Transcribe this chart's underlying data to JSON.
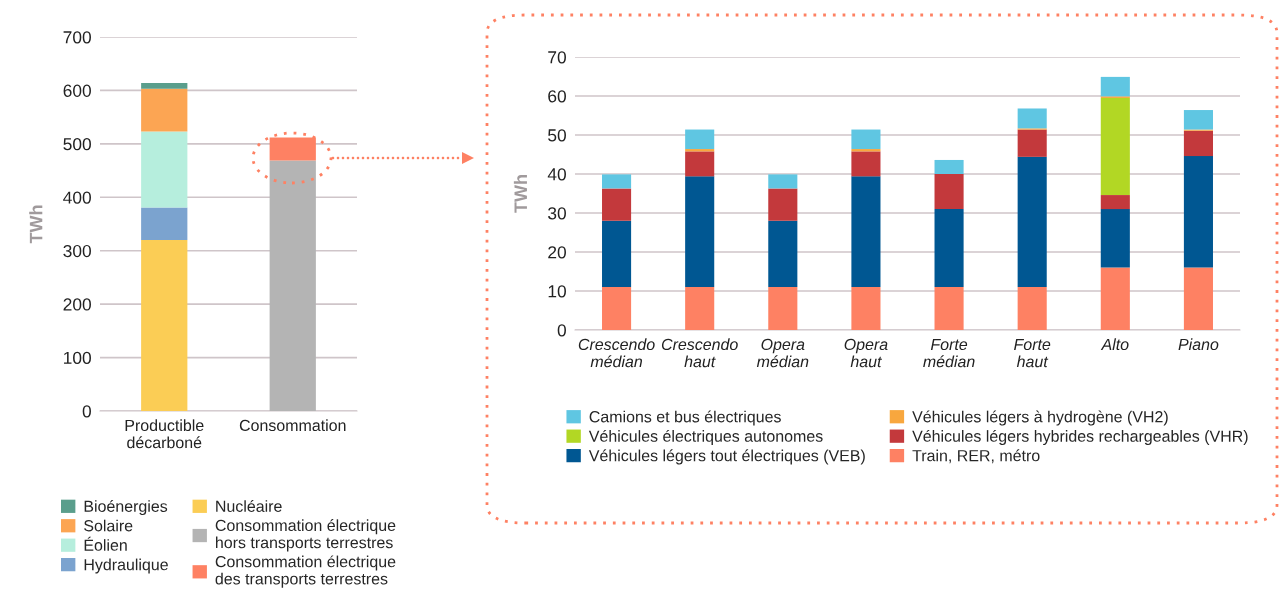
{
  "chart_data": [
    {
      "type": "bar",
      "stacked": true,
      "categories": [
        "Productible\ndécarboné",
        "Consommation"
      ],
      "ylabel": "TWh",
      "ylim": [
        0,
        700
      ],
      "yticks": [
        0,
        100,
        200,
        300,
        400,
        500,
        600,
        700
      ],
      "grid": "y",
      "legend": "bottom",
      "series": [
        {
          "name": "Nucléaire",
          "color": "#fbcd55",
          "values": [
            320,
            null
          ]
        },
        {
          "name": "Hydraulique",
          "color": "#7ba3cf",
          "values": [
            61,
            null
          ]
        },
        {
          "name": "Éolien",
          "color": "#b6eedd",
          "values": [
            142,
            null
          ]
        },
        {
          "name": "Solaire",
          "color": "#fca553",
          "values": [
            80,
            null
          ]
        },
        {
          "name": "Bioénergies",
          "color": "#5a9e8c",
          "values": [
            11,
            null
          ]
        },
        {
          "name": "Consommation électrique\nhors transports terrestres",
          "color": "#b4b4b4",
          "values": [
            null,
            469
          ]
        },
        {
          "name": "Consommation électrique\ndes transports terrestres",
          "color": "#fe8163",
          "values": [
            null,
            43
          ]
        }
      ]
    },
    {
      "type": "bar",
      "stacked": true,
      "categories": [
        "Crescendo\nmédian",
        "Crescendo\nhaut",
        "Opera\nmédian",
        "Opera\nhaut",
        "Forte\nmédian",
        "Forte\nhaut",
        "Alto",
        "Piano"
      ],
      "ylabel": "TWh",
      "ylim": [
        0,
        70
      ],
      "yticks": [
        0,
        10,
        20,
        30,
        40,
        50,
        60,
        70
      ],
      "grid": "y",
      "legend": "bottom",
      "series": [
        {
          "name": "Train, RER, métro",
          "color": "#fe8163",
          "values": [
            11,
            11,
            11,
            11,
            11,
            11,
            16,
            16
          ]
        },
        {
          "name": "Véhicules légers tout électriques (VEB)",
          "color": "#005792",
          "values": [
            17,
            28.4,
            17,
            28.4,
            20,
            33.4,
            15,
            28.6
          ]
        },
        {
          "name": "Véhicules légers hybrides rechargeables (VHR)",
          "color": "#c3393c",
          "values": [
            8.3,
            6.4,
            8.3,
            6.4,
            9,
            7,
            3.6,
            6.5
          ]
        },
        {
          "name": "Véhicules électriques autonomes",
          "color": "#b2d724",
          "values": [
            null,
            null,
            null,
            null,
            null,
            null,
            24.9,
            null
          ]
        },
        {
          "name": "Véhicules légers à hydrogène (VH2)",
          "color": "#f8a73e",
          "values": [
            null,
            0.6,
            null,
            0.6,
            null,
            0.3,
            0.4,
            0.3
          ]
        },
        {
          "name": "Camions et bus électriques",
          "color": "#5fc6e2",
          "values": [
            3.6,
            5,
            3.6,
            5,
            3.6,
            5.1,
            5,
            5
          ]
        }
      ]
    }
  ]
}
